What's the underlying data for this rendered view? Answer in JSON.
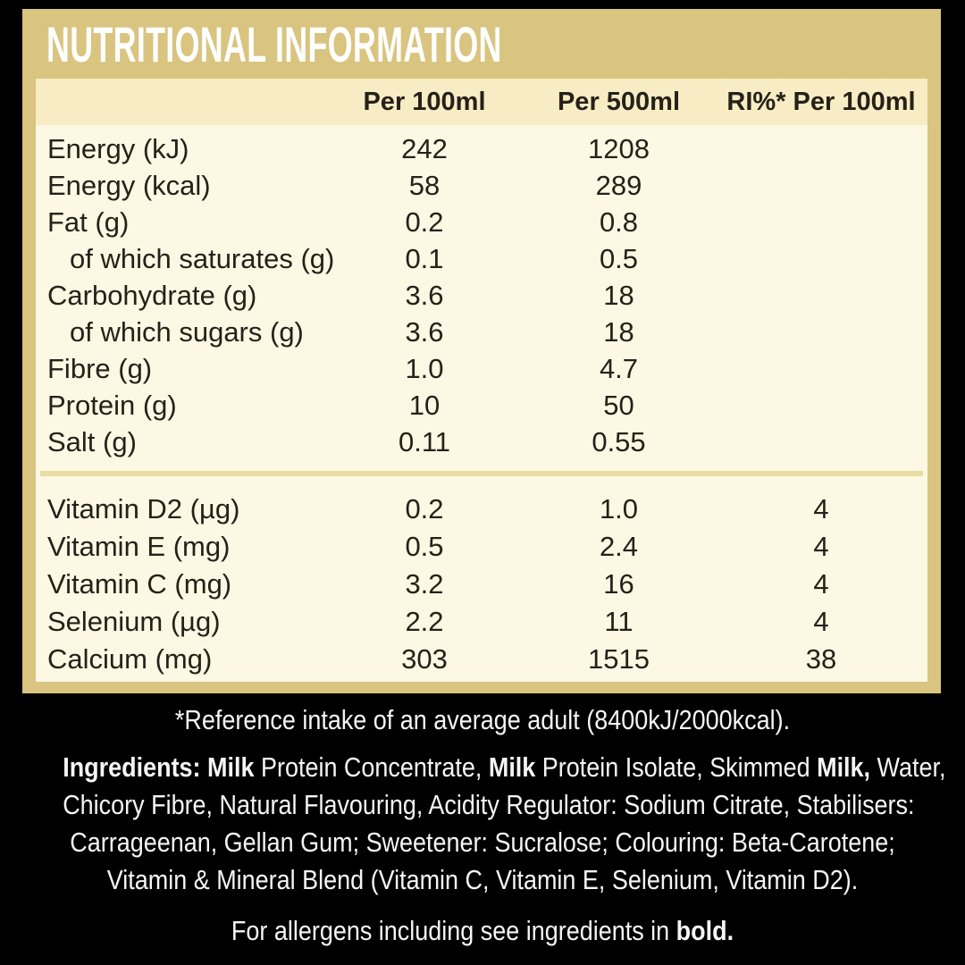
{
  "title": "NUTRITIONAL INFORMATION",
  "table": {
    "columns": [
      "Per 100ml",
      "Per 500ml",
      "RI%* Per 100ml"
    ],
    "main_rows": [
      {
        "label": "Energy (kJ)",
        "indent": false,
        "per100": "242",
        "per500": "1208",
        "ri": ""
      },
      {
        "label": "Energy (kcal)",
        "indent": false,
        "per100": "58",
        "per500": "289",
        "ri": ""
      },
      {
        "label": "Fat (g)",
        "indent": false,
        "per100": "0.2",
        "per500": "0.8",
        "ri": ""
      },
      {
        "label": "of which saturates (g)",
        "indent": true,
        "per100": "0.1",
        "per500": "0.5",
        "ri": ""
      },
      {
        "label": "Carbohydrate (g)",
        "indent": false,
        "per100": "3.6",
        "per500": "18",
        "ri": ""
      },
      {
        "label": "of which sugars (g)",
        "indent": true,
        "per100": "3.6",
        "per500": "18",
        "ri": ""
      },
      {
        "label": "Fibre (g)",
        "indent": false,
        "per100": "1.0",
        "per500": "4.7",
        "ri": ""
      },
      {
        "label": "Protein (g)",
        "indent": false,
        "per100": "10",
        "per500": "50",
        "ri": ""
      },
      {
        "label": "Salt (g)",
        "indent": false,
        "per100": "0.11",
        "per500": "0.55",
        "ri": ""
      }
    ],
    "vitamin_rows": [
      {
        "label": "Vitamin D2 (µg)",
        "per100": "0.2",
        "per500": "1.0",
        "ri": "4"
      },
      {
        "label": "Vitamin E (mg)",
        "per100": "0.5",
        "per500": "2.4",
        "ri": "4"
      },
      {
        "label": "Vitamin C (mg)",
        "per100": "3.2",
        "per500": "16",
        "ri": "4"
      },
      {
        "label": "Selenium (µg)",
        "per100": "2.2",
        "per500": "11",
        "ri": "4"
      },
      {
        "label": "Calcium (mg)",
        "per100": "303",
        "per500": "1515",
        "ri": "38"
      }
    ]
  },
  "footnote": "*Reference intake of an average adult (8400kJ/2000kcal).",
  "ingredients": {
    "lines": [
      {
        "segments": [
          {
            "text": "Ingredients: Milk",
            "bold": true
          },
          {
            "text": " Protein Concentrate, ",
            "bold": false
          },
          {
            "text": "Milk",
            "bold": true
          },
          {
            "text": " Protein Isolate, Skimmed ",
            "bold": false
          },
          {
            "text": "Milk,",
            "bold": true
          },
          {
            "text": " Water,",
            "bold": false
          }
        ]
      },
      {
        "segments": [
          {
            "text": "Chicory Fibre, Natural Flavouring, Acidity Regulator: Sodium Citrate, Stabilisers:",
            "bold": false
          }
        ]
      },
      {
        "segments": [
          {
            "text": "Carrageenan, Gellan Gum; Sweetener: Sucralose; Colouring: Beta-Carotene;",
            "bold": false
          }
        ]
      },
      {
        "segments": [
          {
            "text": "Vitamin & Mineral Blend (Vitamin C, Vitamin E, Selenium, Vitamin D2).",
            "bold": false
          }
        ]
      }
    ]
  },
  "allergens": {
    "segments": [
      {
        "text": "For allergens including see ingredients in ",
        "bold": false
      },
      {
        "text": "bold.",
        "bold": true
      }
    ]
  },
  "colors": {
    "background": "#000000",
    "panel_tan": "#d9c480",
    "header_cream": "#f8ecc4",
    "body_cream": "#fdf8e4",
    "divider": "#e8dca4",
    "table_text": "#262118",
    "footer_text": "#f5f5f5"
  }
}
